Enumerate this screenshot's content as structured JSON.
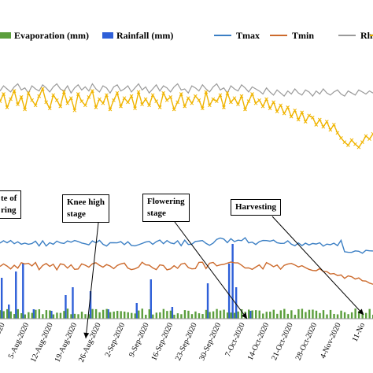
{
  "chart_data": {
    "type": "line",
    "legend": {
      "placement": "top",
      "items": [
        {
          "name": "Evaporation (mm)",
          "kind": "bar",
          "color": "#5b9e3c"
        },
        {
          "name": "Rainfall (mm)",
          "kind": "bar",
          "color": "#2e5fd8"
        },
        {
          "name": "Tmax",
          "kind": "line",
          "color": "#3b7fc4"
        },
        {
          "name": "Tmin",
          "kind": "line",
          "color": "#cc6a2c"
        },
        {
          "name": "Rhmax",
          "kind": "line",
          "color": "#9a9a9a"
        },
        {
          "name": "",
          "kind": "line",
          "color": "#f0b400"
        }
      ]
    },
    "x_tick_labels": [
      "-2020",
      "5-Aug-2020",
      "12-Aug-2020",
      "19-Aug-2020",
      "26-Aug-2020",
      "2-Sep-2020",
      "9-Sep-2020",
      "16-Sep-2020",
      "23-Sep-2020",
      "30-Sep-2020",
      "7-Oct-2020",
      "14-Oct-2020",
      "21-Oct-2020",
      "28-Oct-2020",
      "4-Nov-2020",
      "11-No"
    ],
    "annotations": [
      {
        "id": "sowing",
        "text": "te of\nring"
      },
      {
        "id": "knee",
        "text": "Knee high\nstage"
      },
      {
        "id": "flowering",
        "text": "Flowering\nstage"
      },
      {
        "id": "harvesting",
        "text": "Harvesting"
      }
    ],
    "series": {
      "rhmax": [
        88,
        93,
        90,
        87,
        92,
        95,
        89,
        91,
        86,
        93,
        90,
        88,
        94,
        91,
        87,
        92,
        95,
        90,
        88,
        93,
        86,
        91,
        94,
        89,
        92,
        88,
        95,
        90,
        87,
        93,
        91,
        86,
        92,
        94,
        88,
        90,
        93,
        87,
        91,
        95,
        89,
        92,
        86,
        90,
        94,
        88,
        93,
        91,
        87,
        92,
        95,
        89,
        90,
        86,
        93,
        91,
        88,
        94,
        90,
        87,
        92,
        95,
        89,
        91,
        86,
        93,
        90,
        88,
        94,
        91,
        87,
        92,
        90,
        88,
        85,
        91,
        87,
        84,
        89,
        86,
        83,
        88,
        85,
        90,
        86,
        84,
        89,
        87,
        83,
        88,
        85,
        90,
        86,
        84,
        87,
        89,
        85,
        83,
        88,
        86,
        84,
        89,
        87,
        85,
        88,
        86
      ],
      "rhmin": [
        78,
        85,
        72,
        80,
        88,
        75,
        82,
        70,
        86,
        79,
        74,
        83,
        90,
        77,
        71,
        84,
        79,
        73,
        87,
        76,
        81,
        69,
        85,
        78,
        74,
        82,
        88,
        72,
        80,
        76,
        84,
        70,
        79,
        86,
        73,
        81,
        77,
        83,
        71,
        87,
        75,
        80,
        74,
        84,
        78,
        72,
        86,
        79,
        82,
        70,
        77,
        85,
        73,
        81,
        76,
        83,
        79,
        71,
        87,
        74,
        80,
        78,
        84,
        72,
        86,
        77,
        81,
        75,
        83,
        70,
        78,
        85,
        76,
        79,
        73,
        80,
        71,
        77,
        68,
        74,
        66,
        72,
        63,
        69,
        60,
        67,
        58,
        64,
        62,
        55,
        60,
        53,
        58,
        50,
        55,
        47,
        42,
        38,
        35,
        40,
        36,
        33,
        38,
        44,
        41,
        46
      ]
    }
  }
}
